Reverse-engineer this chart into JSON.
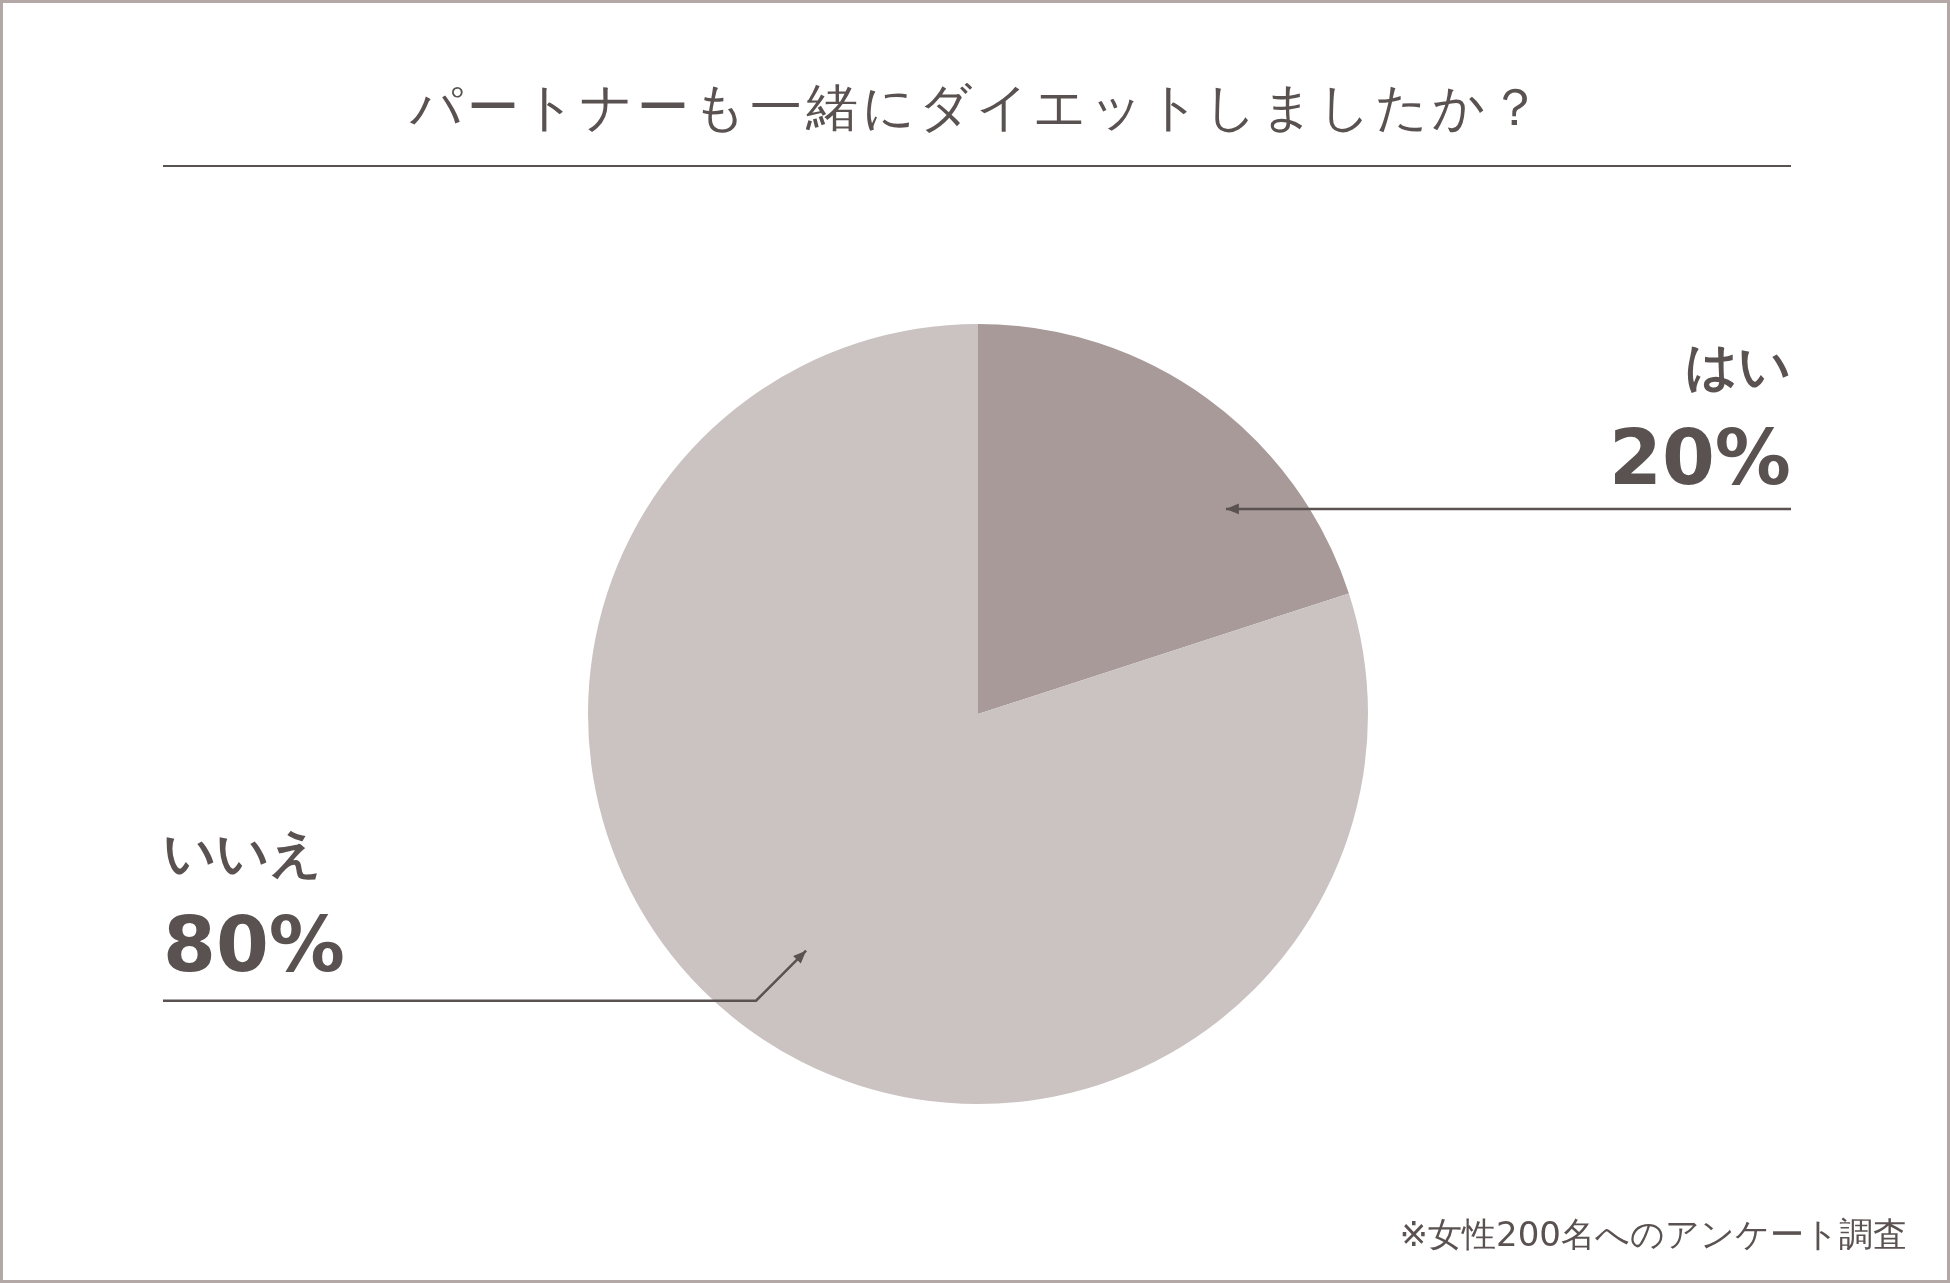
{
  "chart_data": {
    "type": "pie",
    "title": "パートナーも一緒にダイエットしましたか？",
    "categories": [
      "はい",
      "いいえ"
    ],
    "values": [
      20,
      80
    ],
    "colors": [
      "#a89a99",
      "#cbc2c2"
    ],
    "value_labels": [
      "20%",
      "80%"
    ],
    "legend": false,
    "annotations": [
      "※女性200名へのアンケート調査"
    ]
  }
}
